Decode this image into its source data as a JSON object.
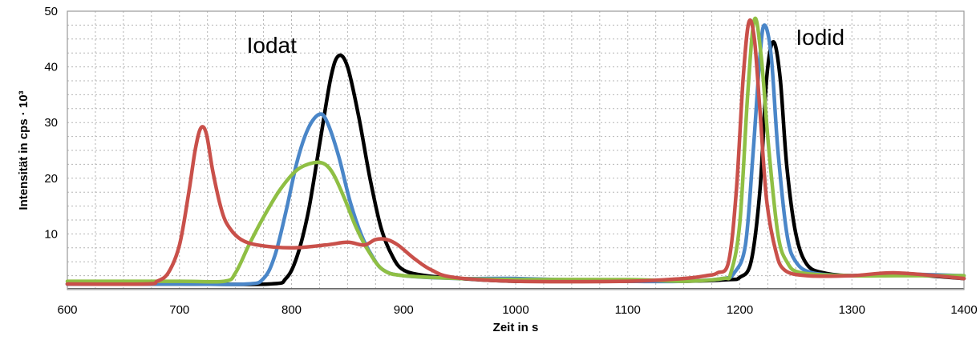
{
  "chart_data": {
    "type": "line",
    "xlabel": "Zeit in s",
    "ylabel": "Intensität in cps · 10³",
    "xlim": [
      600,
      1400
    ],
    "ylim": [
      0,
      50
    ],
    "xticks": [
      600,
      700,
      800,
      900,
      1000,
      1100,
      1200,
      1300,
      1400
    ],
    "yticks": [
      10,
      20,
      30,
      40,
      50
    ],
    "grid": true,
    "annotations": [
      {
        "text": "Iodat",
        "x": 760,
        "y": 42.5
      },
      {
        "text": "Iodid",
        "x": 1250,
        "y": 44
      }
    ],
    "series": [
      {
        "color": "#000000",
        "points": [
          [
            600,
            1
          ],
          [
            700,
            1
          ],
          [
            780,
            1
          ],
          [
            795,
            2
          ],
          [
            805,
            6
          ],
          [
            815,
            14
          ],
          [
            825,
            26
          ],
          [
            835,
            38
          ],
          [
            842,
            42
          ],
          [
            850,
            40
          ],
          [
            860,
            31
          ],
          [
            870,
            20
          ],
          [
            880,
            11
          ],
          [
            890,
            6
          ],
          [
            900,
            3.5
          ],
          [
            920,
            2.5
          ],
          [
            950,
            2
          ],
          [
            1000,
            1.5
          ],
          [
            1100,
            1.5
          ],
          [
            1150,
            1.5
          ],
          [
            1190,
            1.8
          ],
          [
            1200,
            2.2
          ],
          [
            1210,
            5
          ],
          [
            1218,
            18
          ],
          [
            1224,
            38
          ],
          [
            1230,
            44.5
          ],
          [
            1236,
            38
          ],
          [
            1242,
            22
          ],
          [
            1250,
            10
          ],
          [
            1260,
            4.5
          ],
          [
            1275,
            3
          ],
          [
            1300,
            2.5
          ],
          [
            1340,
            2.8
          ],
          [
            1400,
            2
          ]
        ]
      },
      {
        "color": "#4a86c8",
        "points": [
          [
            600,
            1
          ],
          [
            700,
            1
          ],
          [
            760,
            1
          ],
          [
            775,
            2
          ],
          [
            785,
            6
          ],
          [
            795,
            14
          ],
          [
            805,
            23
          ],
          [
            815,
            29
          ],
          [
            825,
            31.5
          ],
          [
            832,
            30
          ],
          [
            842,
            24
          ],
          [
            852,
            16
          ],
          [
            862,
            10
          ],
          [
            872,
            6
          ],
          [
            882,
            3.5
          ],
          [
            900,
            2.5
          ],
          [
            950,
            2
          ],
          [
            1000,
            2
          ],
          [
            1100,
            1.5
          ],
          [
            1150,
            1.5
          ],
          [
            1185,
            2
          ],
          [
            1195,
            3
          ],
          [
            1205,
            8
          ],
          [
            1212,
            25
          ],
          [
            1218,
            42
          ],
          [
            1222,
            47.5
          ],
          [
            1228,
            42
          ],
          [
            1234,
            25
          ],
          [
            1242,
            10
          ],
          [
            1250,
            5
          ],
          [
            1265,
            3
          ],
          [
            1300,
            2.5
          ],
          [
            1340,
            2.8
          ],
          [
            1400,
            2.5
          ]
        ]
      },
      {
        "color": "#8fbf44",
        "points": [
          [
            600,
            1.5
          ],
          [
            700,
            1.5
          ],
          [
            740,
            1.5
          ],
          [
            750,
            3
          ],
          [
            762,
            8
          ],
          [
            775,
            13
          ],
          [
            790,
            18
          ],
          [
            805,
            21.5
          ],
          [
            820,
            22.8
          ],
          [
            830,
            22.5
          ],
          [
            838,
            20.5
          ],
          [
            848,
            16
          ],
          [
            858,
            11
          ],
          [
            870,
            6.5
          ],
          [
            882,
            3.5
          ],
          [
            900,
            2.5
          ],
          [
            950,
            2
          ],
          [
            1000,
            1.8
          ],
          [
            1100,
            1.8
          ],
          [
            1150,
            1.5
          ],
          [
            1185,
            2
          ],
          [
            1192,
            3
          ],
          [
            1200,
            12
          ],
          [
            1207,
            35
          ],
          [
            1213,
            48.5
          ],
          [
            1219,
            42
          ],
          [
            1226,
            25
          ],
          [
            1234,
            10
          ],
          [
            1242,
            5
          ],
          [
            1255,
            3
          ],
          [
            1300,
            2.5
          ],
          [
            1340,
            2.5
          ],
          [
            1400,
            2.5
          ]
        ]
      },
      {
        "color": "#c9504a",
        "points": [
          [
            600,
            1
          ],
          [
            670,
            1
          ],
          [
            680,
            1.5
          ],
          [
            690,
            3
          ],
          [
            700,
            8
          ],
          [
            708,
            17
          ],
          [
            714,
            25
          ],
          [
            719,
            29
          ],
          [
            724,
            28
          ],
          [
            730,
            21
          ],
          [
            738,
            14
          ],
          [
            745,
            11
          ],
          [
            755,
            9
          ],
          [
            770,
            8
          ],
          [
            800,
            7.5
          ],
          [
            830,
            8
          ],
          [
            850,
            8.5
          ],
          [
            865,
            8
          ],
          [
            875,
            9
          ],
          [
            885,
            9
          ],
          [
            895,
            8
          ],
          [
            910,
            5.5
          ],
          [
            925,
            3.5
          ],
          [
            945,
            2.2
          ],
          [
            1000,
            1.5
          ],
          [
            1100,
            1.5
          ],
          [
            1150,
            2
          ],
          [
            1170,
            2.5
          ],
          [
            1180,
            3
          ],
          [
            1190,
            5
          ],
          [
            1197,
            18
          ],
          [
            1203,
            38
          ],
          [
            1208,
            48
          ],
          [
            1213,
            45
          ],
          [
            1218,
            32
          ],
          [
            1224,
            16
          ],
          [
            1232,
            7
          ],
          [
            1240,
            3.5
          ],
          [
            1260,
            2.5
          ],
          [
            1300,
            2.5
          ],
          [
            1340,
            3
          ],
          [
            1400,
            2
          ]
        ]
      }
    ]
  }
}
